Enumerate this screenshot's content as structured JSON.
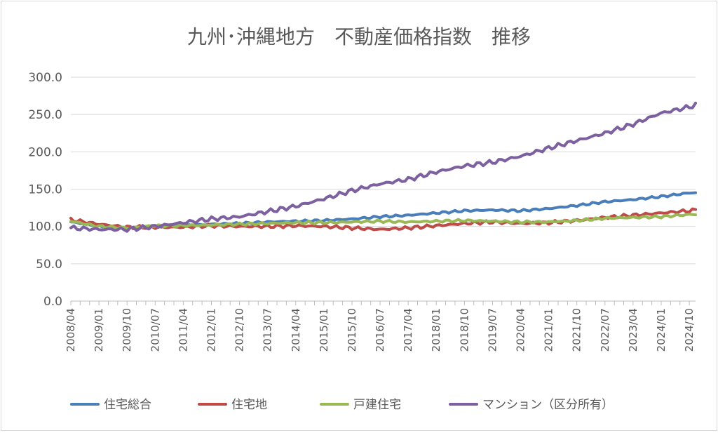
{
  "chart_data": {
    "type": "line",
    "title": "九州･沖縄地方　不動産価格指数　推移",
    "xlabel": "",
    "ylabel": "",
    "ylim": [
      0,
      300
    ],
    "yticks": [
      "0.0",
      "50.0",
      "100.0",
      "150.0",
      "200.0",
      "250.0",
      "300.0"
    ],
    "x_tick_labels": [
      "2008/04",
      "2009/01",
      "2009/10",
      "2010/07",
      "2011/04",
      "2012/01",
      "2012/10",
      "2013/07",
      "2014/04",
      "2015/01",
      "2015/10",
      "2016/07",
      "2017/04",
      "2018/01",
      "2018/10",
      "2019/07",
      "2020/04",
      "2021/01",
      "2021/10",
      "2022/07",
      "2023/04",
      "2024/01",
      "2024/10"
    ],
    "x_range": [
      "2008/04",
      "2024/12"
    ],
    "grid": "horizontal",
    "legend": "bottom",
    "series": [
      {
        "name": "住宅総合",
        "color": "#4a7ebb",
        "anchors": [
          [
            "2008/04",
            106
          ],
          [
            "2009/01",
            101
          ],
          [
            "2009/10",
            98
          ],
          [
            "2010/07",
            100
          ],
          [
            "2011/04",
            101
          ],
          [
            "2012/01",
            103
          ],
          [
            "2012/10",
            104
          ],
          [
            "2013/07",
            106
          ],
          [
            "2014/04",
            107
          ],
          [
            "2015/01",
            108
          ],
          [
            "2015/10",
            110
          ],
          [
            "2016/07",
            113
          ],
          [
            "2017/04",
            115
          ],
          [
            "2018/01",
            118
          ],
          [
            "2018/10",
            121
          ],
          [
            "2019/07",
            122
          ],
          [
            "2020/04",
            121
          ],
          [
            "2021/01",
            124
          ],
          [
            "2021/10",
            128
          ],
          [
            "2022/07",
            133
          ],
          [
            "2023/04",
            136
          ],
          [
            "2024/01",
            140
          ],
          [
            "2024/10",
            145
          ],
          [
            "2024/12",
            145
          ]
        ]
      },
      {
        "name": "住宅地",
        "color": "#be4b48",
        "anchors": [
          [
            "2008/04",
            109
          ],
          [
            "2009/01",
            103
          ],
          [
            "2009/10",
            99
          ],
          [
            "2010/07",
            99
          ],
          [
            "2011/04",
            99
          ],
          [
            "2012/01",
            101
          ],
          [
            "2012/10",
            100
          ],
          [
            "2013/07",
            100
          ],
          [
            "2014/04",
            101
          ],
          [
            "2015/01",
            100
          ],
          [
            "2015/10",
            98
          ],
          [
            "2016/07",
            96
          ],
          [
            "2017/04",
            98
          ],
          [
            "2018/01",
            101
          ],
          [
            "2018/10",
            104
          ],
          [
            "2019/07",
            106
          ],
          [
            "2020/04",
            104
          ],
          [
            "2021/01",
            105
          ],
          [
            "2021/10",
            108
          ],
          [
            "2022/07",
            112
          ],
          [
            "2023/04",
            115
          ],
          [
            "2024/01",
            118
          ],
          [
            "2024/10",
            121
          ],
          [
            "2024/12",
            122
          ]
        ]
      },
      {
        "name": "戸建住宅",
        "color": "#98b954",
        "anchors": [
          [
            "2008/04",
            107
          ],
          [
            "2009/01",
            100
          ],
          [
            "2009/10",
            98
          ],
          [
            "2010/07",
            101
          ],
          [
            "2011/04",
            101
          ],
          [
            "2012/01",
            102
          ],
          [
            "2012/10",
            103
          ],
          [
            "2013/07",
            104
          ],
          [
            "2014/04",
            105
          ],
          [
            "2015/01",
            105
          ],
          [
            "2015/10",
            106
          ],
          [
            "2016/07",
            107
          ],
          [
            "2017/04",
            106
          ],
          [
            "2018/01",
            107
          ],
          [
            "2018/10",
            108
          ],
          [
            "2019/07",
            107
          ],
          [
            "2020/04",
            106
          ],
          [
            "2021/01",
            106
          ],
          [
            "2021/10",
            108
          ],
          [
            "2022/07",
            111
          ],
          [
            "2023/04",
            112
          ],
          [
            "2024/01",
            113
          ],
          [
            "2024/10",
            116
          ],
          [
            "2024/12",
            116
          ]
        ]
      },
      {
        "name": "マンション（区分所有）",
        "color": "#7d60a0",
        "anchors": [
          [
            "2008/04",
            98
          ],
          [
            "2009/01",
            96
          ],
          [
            "2009/10",
            96
          ],
          [
            "2010/07",
            100
          ],
          [
            "2011/04",
            105
          ],
          [
            "2012/01",
            110
          ],
          [
            "2012/10",
            113
          ],
          [
            "2013/07",
            120
          ],
          [
            "2014/04",
            127
          ],
          [
            "2015/01",
            137
          ],
          [
            "2015/10",
            148
          ],
          [
            "2016/07",
            157
          ],
          [
            "2017/04",
            163
          ],
          [
            "2018/01",
            173
          ],
          [
            "2018/10",
            181
          ],
          [
            "2019/07",
            186
          ],
          [
            "2020/04",
            194
          ],
          [
            "2021/01",
            205
          ],
          [
            "2021/10",
            215
          ],
          [
            "2022/07",
            225
          ],
          [
            "2023/04",
            237
          ],
          [
            "2024/01",
            252
          ],
          [
            "2024/10",
            260
          ],
          [
            "2024/12",
            263
          ]
        ]
      }
    ]
  }
}
